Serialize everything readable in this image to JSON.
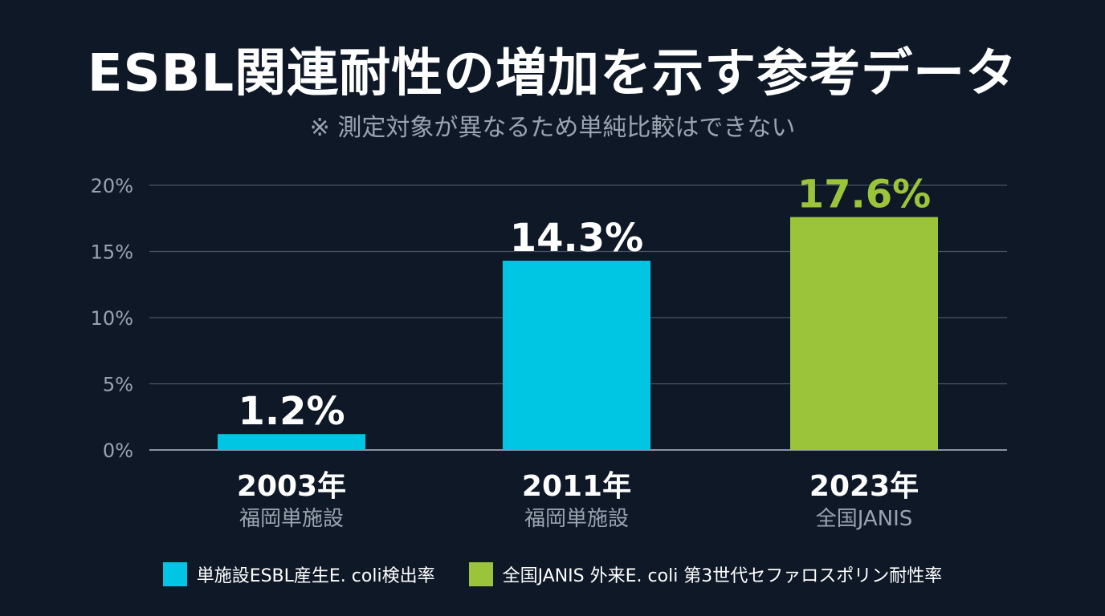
{
  "chart_data": {
    "type": "bar",
    "title": "ESBL関連耐性の増加を示す参考データ",
    "subtitle": "※ 測定対象が異なるため単純比較はできない",
    "categories": [
      "2003年",
      "2011年",
      "2023年"
    ],
    "category_sublabels": [
      "福岡単施設",
      "福岡単施設",
      "全国JANIS"
    ],
    "values": [
      1.2,
      14.3,
      17.6
    ],
    "value_labels": [
      "1.2%",
      "14.3%",
      "17.6%"
    ],
    "series_index": [
      0,
      0,
      1
    ],
    "series": [
      {
        "name": "単施設ESBL産生E. coli検出率",
        "color": "#00c5e3"
      },
      {
        "name": "全国JANIS 外来E. coli 第3世代セファロスポリン耐性率",
        "color": "#9cc43b"
      }
    ],
    "yticks": [
      0,
      5,
      10,
      15,
      20
    ],
    "ytick_labels": [
      "0%",
      "5%",
      "10%",
      "15%",
      "20%"
    ],
    "ylim": [
      0,
      20
    ],
    "grid": true,
    "legend_position": "bottom",
    "colors": {
      "background": "#0e1826",
      "grid": "#4a5565",
      "tick_text": "#9aa4b1",
      "sublabel_text": "#9aa4b1",
      "highlight_label": "#9cc43b"
    }
  }
}
